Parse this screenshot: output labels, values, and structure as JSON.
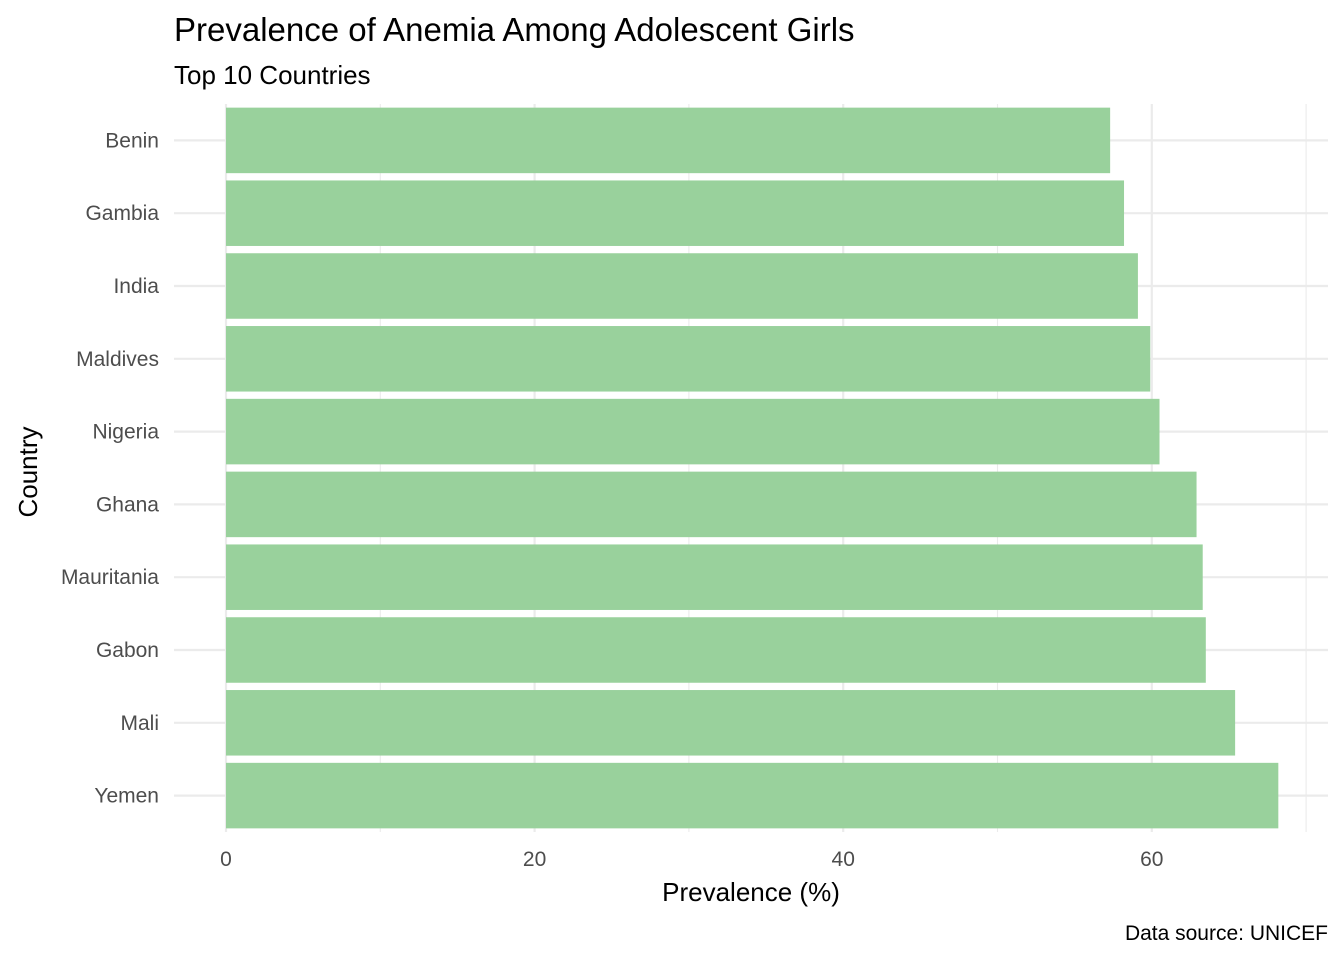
{
  "chart_data": {
    "type": "bar",
    "orientation": "horizontal",
    "title": "Prevalence of Anemia Among Adolescent Girls",
    "subtitle": "Top 10 Countries",
    "xlabel": "Prevalence (%)",
    "ylabel": "Country",
    "caption": "Data source: UNICEF",
    "categories": [
      "Benin",
      "Gambia",
      "India",
      "Maldives",
      "Nigeria",
      "Ghana",
      "Mauritania",
      "Gabon",
      "Mali",
      "Yemen"
    ],
    "values": [
      57.3,
      58.2,
      59.1,
      59.9,
      60.5,
      62.9,
      63.3,
      63.5,
      65.4,
      68.2
    ],
    "xlim": [
      0,
      70
    ],
    "xticks": [
      0,
      20,
      40,
      60
    ],
    "grid": true,
    "legend": "none",
    "colors": {
      "bar": "#99d19c",
      "grid": "#ebebeb",
      "tick_text": "#4d4d4d"
    }
  }
}
